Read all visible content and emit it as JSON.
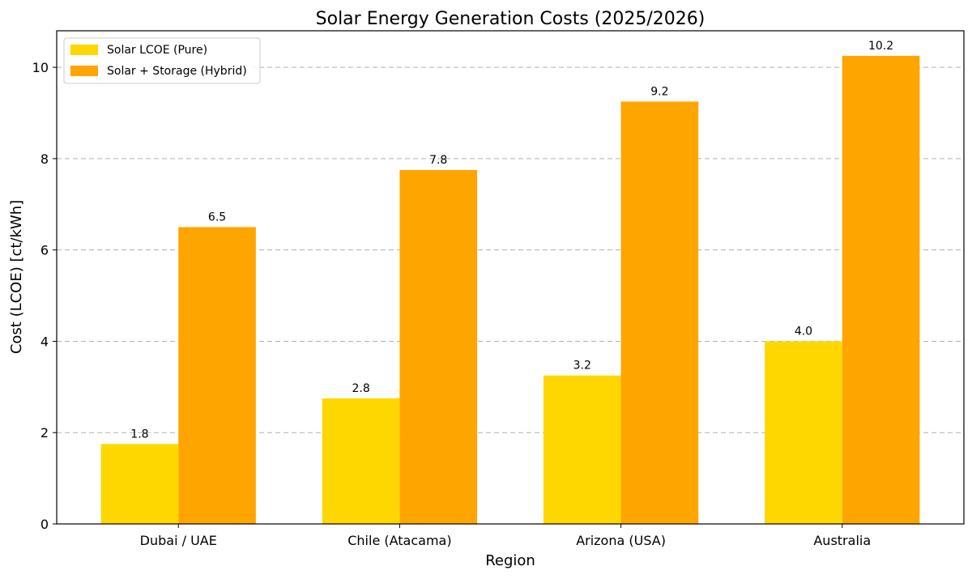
{
  "chart_data": {
    "type": "bar",
    "title": "Solar Energy Generation Costs (2025/2026)",
    "xlabel": "Region",
    "ylabel": "Cost (LCOE) [ct/kWh]",
    "categories": [
      "Dubai / UAE",
      "Chile (Atacama)",
      "Arizona (USA)",
      "Australia"
    ],
    "series": [
      {
        "name": "Solar LCOE (Pure)",
        "color": "#FFD700",
        "values": [
          1.75,
          2.75,
          3.25,
          4.0
        ],
        "labels": [
          "1.8",
          "2.8",
          "3.2",
          "4.0"
        ]
      },
      {
        "name": "Solar + Storage (Hybrid)",
        "color": "#FFA500",
        "values": [
          6.5,
          7.75,
          9.25,
          10.25
        ],
        "labels": [
          "6.5",
          "7.8",
          "9.2",
          "10.2"
        ]
      }
    ],
    "ylim": [
      0,
      10.8
    ],
    "yticks": [
      0,
      2,
      4,
      6,
      8,
      10
    ],
    "grid": true,
    "legend_position": "top-left"
  }
}
